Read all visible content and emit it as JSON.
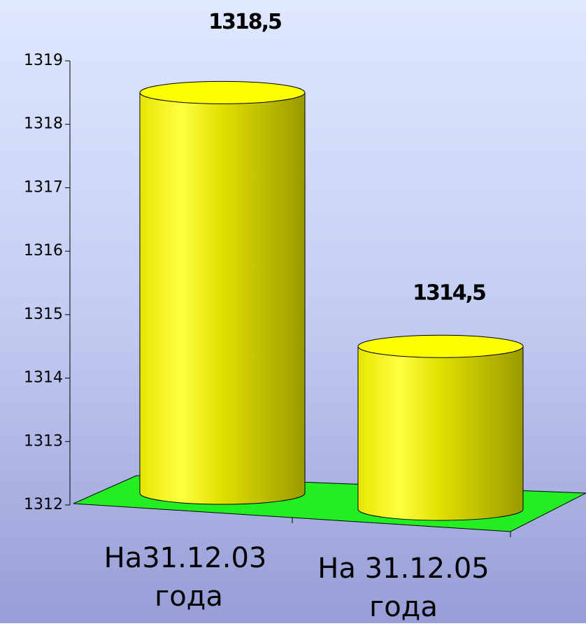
{
  "chart_data": {
    "type": "bar",
    "categories": [
      [
        "На31.12.03",
        "года"
      ],
      [
        "На 31.12.05",
        "года"
      ]
    ],
    "values": [
      1318.5,
      1314.5
    ],
    "value_labels": [
      "1318,5",
      "1314,5"
    ],
    "color": "#ffff00",
    "ylim": [
      1312,
      1319
    ],
    "yticks": [
      1312,
      1313,
      1314,
      1315,
      1316,
      1317,
      1318,
      1319
    ]
  }
}
